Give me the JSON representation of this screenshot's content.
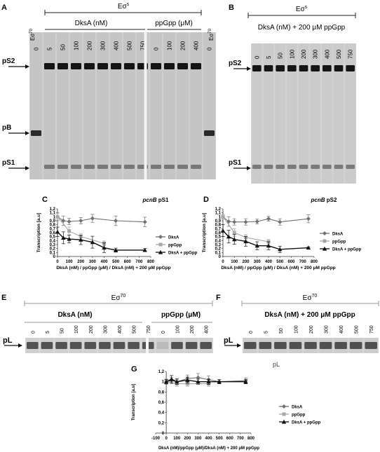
{
  "panels": {
    "A": {
      "letter": "A",
      "header": "Eσ",
      "header_sup": "s",
      "group1_label": "DksA (nM)",
      "group2_label": "ppGpp (μM)",
      "left_control": "Eσ",
      "left_control_sup": "70",
      "right_control": "Eσ",
      "right_control_sup": "70",
      "lanes": [
        "0",
        "5",
        "50",
        "100",
        "200",
        "300",
        "400",
        "500",
        "750",
        "0",
        "100",
        "200",
        "400",
        "0"
      ],
      "bands": [
        "pS2",
        "pB",
        "pS1"
      ]
    },
    "B": {
      "letter": "B",
      "header": "Eσ",
      "header_sup": "s",
      "subheader": "DksA (nM) + 200 μM ppGpp",
      "lanes": [
        "0",
        "5",
        "50",
        "100",
        "200",
        "300",
        "400",
        "500",
        "750"
      ],
      "bands": [
        "pS2",
        "pS1"
      ]
    },
    "E": {
      "letter": "E",
      "header": "Eσ",
      "header_sup": "70",
      "group1_label": "DksA (nM)",
      "group2_label": "ppGpp (μM)",
      "lanes": [
        "0",
        "5",
        "50",
        "100",
        "200",
        "300",
        "400",
        "500",
        "750",
        "0",
        "100",
        "200",
        "400"
      ],
      "band": "pL"
    },
    "F": {
      "letter": "F",
      "header": "Eσ",
      "header_sup": "70",
      "subheader": "DksA (nM) + 200 μM ppGpp",
      "lanes": [
        "0",
        "5",
        "50",
        "100",
        "200",
        "300",
        "400",
        "500",
        "750"
      ],
      "band": "pL",
      "caption": "pL"
    }
  },
  "chart_data": [
    {
      "panel": "C",
      "type": "line",
      "title_italic": "pcnB",
      "title_rest": " pS1",
      "xlabel": "DksA (nM) / ppGpp (μM) / DksA (nM) + 200 μM ppGpp",
      "ylabel": "Transcription [a.u]",
      "xlim": [
        0,
        800
      ],
      "ylim": [
        0,
        1.2
      ],
      "xticks": [
        "0",
        "100",
        "200",
        "300",
        "400",
        "500",
        "600",
        "700",
        "800"
      ],
      "yticks": [
        "0",
        "0,1",
        "0,2",
        "0,3",
        "0,4",
        "0,5",
        "0,6",
        "0,7",
        "0,8",
        "0,9",
        "1",
        "1,1",
        "1,2"
      ],
      "legend_position": "right",
      "series": [
        {
          "name": "DksA",
          "color": "#707070",
          "marker": "diamond",
          "x": [
            0,
            50,
            100,
            200,
            300,
            500,
            750
          ],
          "y": [
            1.0,
            0.9,
            0.88,
            0.9,
            0.96,
            0.9,
            0.87
          ],
          "err": [
            0.1,
            0.12,
            0.08,
            0.08,
            0.1,
            0.12,
            0.12
          ]
        },
        {
          "name": "ppGpp",
          "color": "#a8a8a8",
          "marker": "square",
          "x": [
            0,
            100,
            200,
            400
          ],
          "y": [
            1.0,
            0.64,
            0.5,
            0.33
          ],
          "err": [
            0.08,
            0.1,
            0.08,
            0.06
          ]
        },
        {
          "name": "DksA + ppGpp",
          "color": "#111111",
          "marker": "triangle",
          "x": [
            0,
            50,
            100,
            200,
            300,
            400,
            500,
            750
          ],
          "y": [
            0.62,
            0.47,
            0.44,
            0.42,
            0.36,
            0.22,
            0.16,
            0.16
          ],
          "err": [
            0.12,
            0.15,
            0.1,
            0.12,
            0.15,
            0.12,
            0.05,
            0.04
          ]
        }
      ]
    },
    {
      "panel": "D",
      "type": "line",
      "title_italic": "pcnB",
      "title_rest": " pS2",
      "xlabel": "DksA (nM) / ppGpp (μM) / DksA (nM) + 200 μM ppGpp",
      "ylabel": "Transcription [a.u]",
      "xlim": [
        0,
        800
      ],
      "ylim": [
        0,
        1.2
      ],
      "xticks": [
        "0",
        "100",
        "200",
        "300",
        "400",
        "500",
        "600",
        "700",
        "800"
      ],
      "yticks": [
        "0",
        "0,1",
        "0,2",
        "0,3",
        "0,4",
        "0,5",
        "0,6",
        "0,7",
        "0,8",
        "0,9",
        "1",
        "1,1",
        "1,2"
      ],
      "legend_position": "right",
      "series": [
        {
          "name": "DksA",
          "color": "#707070",
          "marker": "diamond",
          "x": [
            0,
            50,
            100,
            200,
            300,
            400,
            500,
            750
          ],
          "y": [
            1.0,
            0.88,
            0.87,
            0.87,
            0.88,
            0.95,
            0.87,
            0.95
          ],
          "err": [
            0.06,
            0.12,
            0.08,
            0.08,
            0.06,
            0.06,
            0.08,
            0.1
          ]
        },
        {
          "name": "ppGpp",
          "color": "#a8a8a8",
          "marker": "square",
          "x": [
            0,
            100,
            200,
            400
          ],
          "y": [
            1.0,
            0.6,
            0.48,
            0.37
          ],
          "err": [
            0.06,
            0.1,
            0.08,
            0.06
          ]
        },
        {
          "name": "DksA + ppGpp",
          "color": "#111111",
          "marker": "triangle",
          "x": [
            0,
            50,
            100,
            200,
            300,
            400,
            500,
            750
          ],
          "y": [
            0.65,
            0.5,
            0.43,
            0.38,
            0.27,
            0.27,
            0.18,
            0.22
          ],
          "err": [
            0.15,
            0.16,
            0.12,
            0.12,
            0.1,
            0.1,
            0.08,
            0.02
          ]
        }
      ]
    },
    {
      "panel": "G",
      "type": "line",
      "xlabel": "DksA (nM)/ppGpp (μM)/DksA (nM) + 200 μM ppGpp",
      "ylabel": "Transcription [a.u]",
      "xlim": [
        -100,
        800
      ],
      "ylim": [
        0,
        1.2
      ],
      "xticks": [
        "-100",
        "0",
        "100",
        "200",
        "300",
        "400",
        "500",
        "600",
        "700",
        "800"
      ],
      "yticks": [
        "0",
        "0,2",
        "0,4",
        "0,6",
        "0,8",
        "1",
        "1,2"
      ],
      "legend_position": "right",
      "series": [
        {
          "name": "DksA",
          "color": "#707070",
          "marker": "diamond",
          "x": [
            0,
            50,
            100,
            200,
            300,
            400,
            500,
            750
          ],
          "y": [
            1.0,
            1.02,
            1.0,
            1.06,
            1.08,
            1.04,
            1.0,
            1.02
          ],
          "err": [
            0.05,
            0.06,
            0.06,
            0.07,
            0.08,
            0.07,
            0.04,
            0.05
          ]
        },
        {
          "name": "ppGpp",
          "color": "#a8a8a8",
          "marker": "square",
          "x": [
            0,
            100,
            200,
            400
          ],
          "y": [
            1.0,
            0.96,
            0.96,
            0.96
          ],
          "err": [
            0.04,
            0.05,
            0.05,
            0.05
          ]
        },
        {
          "name": "DksA + ppGpp",
          "color": "#111111",
          "marker": "triangle",
          "x": [
            0,
            50,
            100,
            200,
            300,
            400,
            500,
            750
          ],
          "y": [
            1.0,
            1.05,
            1.0,
            1.03,
            1.0,
            1.0,
            1.0,
            1.0
          ],
          "err": [
            0.04,
            0.07,
            0.05,
            0.06,
            0.05,
            0.05,
            0.04,
            0.04
          ]
        }
      ]
    }
  ]
}
